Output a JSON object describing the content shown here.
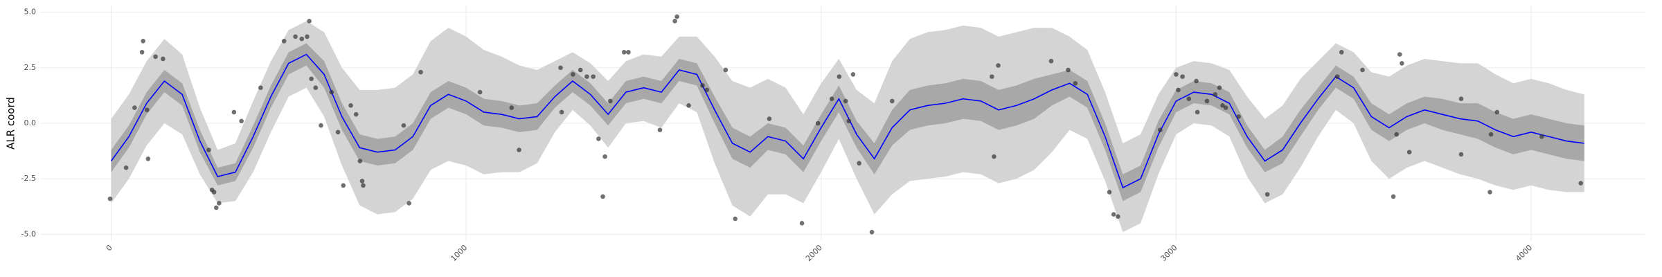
{
  "chart_data": {
    "type": "gp-line",
    "ylabel": "ALR coord",
    "xlim": [
      -200,
      4320
    ],
    "ylim": [
      -5.3,
      5.3
    ],
    "xticks": [
      0,
      1000,
      2000,
      3000,
      4000
    ],
    "yticks": [
      {
        "value": -5,
        "label": "-5.0"
      },
      {
        "value": -2.5,
        "label": "-2.5"
      },
      {
        "value": 0,
        "label": "0.0"
      },
      {
        "value": 2.5,
        "label": "2.5"
      },
      {
        "value": 5,
        "label": "5.0"
      }
    ],
    "grid": true,
    "x": [
      0,
      50,
      100,
      150,
      200,
      250,
      300,
      350,
      400,
      450,
      500,
      550,
      600,
      650,
      700,
      750,
      800,
      850,
      900,
      950,
      1000,
      1050,
      1100,
      1150,
      1200,
      1250,
      1300,
      1350,
      1400,
      1450,
      1500,
      1550,
      1600,
      1650,
      1700,
      1750,
      1800,
      1850,
      1900,
      1950,
      2000,
      2050,
      2100,
      2150,
      2200,
      2250,
      2300,
      2350,
      2400,
      2450,
      2500,
      2550,
      2600,
      2650,
      2700,
      2750,
      2800,
      2850,
      2900,
      2950,
      3000,
      3050,
      3100,
      3150,
      3200,
      3250,
      3300,
      3350,
      3400,
      3450,
      3500,
      3550,
      3600,
      3650,
      3700,
      3750,
      3800,
      3850,
      3900,
      3950,
      4000,
      4050,
      4100,
      4150
    ],
    "bands": [
      {
        "color": "#d4d4d4",
        "lower": [
          -3.6,
          -2.5,
          -1.0,
          0.0,
          -0.5,
          -2.3,
          -3.6,
          -3.5,
          -2.2,
          -0.4,
          1.2,
          1.6,
          0.3,
          -1.9,
          -3.7,
          -4.1,
          -4.0,
          -3.4,
          -2.1,
          -1.7,
          -1.9,
          -2.3,
          -2.2,
          -2.2,
          -1.8,
          -0.4,
          0.6,
          -0.1,
          -1.1,
          0.0,
          0.1,
          -0.2,
          0.9,
          0.5,
          -1.8,
          -3.7,
          -4.2,
          -3.2,
          -3.2,
          -3.6,
          -2.2,
          -0.7,
          -2.5,
          -4.1,
          -3.2,
          -2.6,
          -2.5,
          -2.4,
          -2.2,
          -2.3,
          -2.7,
          -2.5,
          -2.1,
          -1.3,
          -0.3,
          -0.7,
          -2.6,
          -4.9,
          -4.5,
          -2.3,
          -0.5,
          0.0,
          -0.1,
          -0.6,
          -2.4,
          -3.6,
          -3.2,
          -2.0,
          -0.6,
          0.6,
          0.0,
          -1.7,
          -2.5,
          -2.0,
          -1.7,
          -2.0,
          -2.3,
          -2.5,
          -2.8,
          -3.0,
          -2.8,
          -3.0,
          -3.1,
          -3.1
        ],
        "upper": [
          0.2,
          1.3,
          2.8,
          3.8,
          3.1,
          0.7,
          -1.2,
          -0.9,
          1.0,
          2.8,
          4.2,
          4.6,
          4.1,
          2.5,
          1.5,
          1.5,
          1.6,
          2.2,
          3.7,
          4.3,
          3.9,
          3.3,
          3.0,
          2.6,
          2.4,
          2.8,
          3.2,
          2.7,
          1.9,
          2.8,
          3.1,
          3.0,
          3.9,
          3.9,
          3.0,
          1.9,
          1.6,
          2.0,
          1.6,
          0.4,
          1.8,
          2.9,
          1.5,
          0.9,
          2.8,
          3.8,
          4.1,
          4.2,
          4.4,
          4.3,
          3.9,
          4.1,
          4.3,
          4.3,
          3.9,
          3.3,
          1.4,
          -0.9,
          -0.5,
          1.3,
          2.5,
          2.8,
          2.7,
          2.4,
          1.2,
          0.2,
          0.8,
          2.0,
          2.8,
          3.6,
          3.2,
          2.3,
          2.1,
          2.6,
          2.9,
          2.8,
          2.7,
          2.7,
          2.2,
          1.8,
          2.0,
          1.8,
          1.5,
          1.3
        ]
      },
      {
        "color": "#a8a8a8",
        "lower": [
          -2.2,
          -1.1,
          0.4,
          1.4,
          0.8,
          -1.3,
          -2.8,
          -2.6,
          -1.1,
          0.7,
          2.2,
          2.6,
          1.6,
          -0.3,
          -1.7,
          -1.9,
          -1.8,
          -1.2,
          0.2,
          0.7,
          0.4,
          -0.1,
          -0.2,
          -0.4,
          -0.3,
          0.7,
          1.4,
          0.8,
          -0.1,
          0.9,
          1.1,
          0.9,
          1.9,
          1.7,
          0.0,
          -1.6,
          -2.0,
          -1.2,
          -1.4,
          -2.2,
          -0.8,
          0.5,
          -1.1,
          -2.3,
          -1.0,
          -0.3,
          -0.1,
          0.0,
          0.2,
          0.1,
          -0.3,
          -0.1,
          0.2,
          0.8,
          1.2,
          0.7,
          -1.2,
          -3.5,
          -3.1,
          -1.1,
          0.5,
          0.9,
          0.8,
          0.4,
          -1.1,
          -2.2,
          -1.8,
          -0.6,
          0.6,
          1.6,
          1.1,
          -0.3,
          -0.8,
          -0.3,
          0.0,
          -0.3,
          -0.5,
          -0.7,
          -1.1,
          -1.4,
          -1.2,
          -1.4,
          -1.6,
          -1.7
        ],
        "upper": [
          -1.2,
          -0.1,
          1.4,
          2.4,
          1.8,
          -0.3,
          -2.0,
          -1.8,
          -0.1,
          1.7,
          3.2,
          3.6,
          2.8,
          0.9,
          -0.5,
          -0.7,
          -0.6,
          0.0,
          1.4,
          1.9,
          1.6,
          1.1,
          1.0,
          0.8,
          0.9,
          1.7,
          2.4,
          1.8,
          0.9,
          1.9,
          2.1,
          1.9,
          2.9,
          2.7,
          1.2,
          -0.2,
          -0.6,
          0.0,
          -0.2,
          -1.0,
          0.4,
          1.7,
          0.1,
          -0.9,
          0.6,
          1.5,
          1.7,
          1.8,
          2.0,
          1.9,
          1.5,
          1.7,
          2.0,
          2.2,
          2.4,
          1.9,
          0.0,
          -2.3,
          -1.9,
          0.1,
          1.5,
          1.9,
          1.8,
          1.4,
          -0.1,
          -1.2,
          -0.6,
          0.6,
          1.6,
          2.6,
          2.1,
          0.9,
          0.4,
          0.9,
          1.2,
          1.1,
          0.9,
          0.9,
          0.5,
          0.2,
          0.4,
          0.2,
          0.0,
          -0.1
        ]
      }
    ],
    "series": [
      {
        "color": "#0000ff",
        "values": [
          -1.7,
          -0.6,
          0.9,
          1.9,
          1.3,
          -0.8,
          -2.4,
          -2.2,
          -0.6,
          1.2,
          2.7,
          3.1,
          2.2,
          0.3,
          -1.1,
          -1.3,
          -1.2,
          -0.6,
          0.8,
          1.3,
          1.0,
          0.5,
          0.4,
          0.2,
          0.3,
          1.2,
          1.9,
          1.3,
          0.4,
          1.4,
          1.6,
          1.4,
          2.4,
          2.2,
          0.6,
          -0.9,
          -1.3,
          -0.6,
          -0.8,
          -1.6,
          -0.2,
          1.1,
          -0.5,
          -1.6,
          -0.2,
          0.6,
          0.8,
          0.9,
          1.1,
          1.0,
          0.6,
          0.8,
          1.1,
          1.5,
          1.8,
          1.3,
          -0.6,
          -2.9,
          -2.5,
          -0.5,
          1.0,
          1.4,
          1.3,
          0.9,
          -0.6,
          -1.7,
          -1.2,
          0.0,
          1.1,
          2.1,
          1.6,
          0.3,
          -0.2,
          0.3,
          0.6,
          0.4,
          0.2,
          0.1,
          -0.3,
          -0.6,
          -0.4,
          -0.6,
          -0.8,
          -0.9
        ]
      }
    ],
    "points": {
      "color": "#333333",
      "x": [
        -3,
        42,
        66,
        87,
        90,
        101,
        104,
        125,
        146,
        275,
        284,
        290,
        296,
        304,
        346,
        367,
        421,
        487,
        519,
        537,
        552,
        558,
        564,
        576,
        591,
        621,
        639,
        654,
        675,
        690,
        701,
        707,
        710,
        824,
        839,
        872,
        1039,
        1128,
        1149,
        1266,
        1269,
        1301,
        1322,
        1340,
        1358,
        1373,
        1385,
        1391,
        1406,
        1445,
        1457,
        1546,
        1588,
        1594,
        1627,
        1666,
        1678,
        1731,
        1758,
        1854,
        1946,
        1991,
        2030,
        2051,
        2069,
        2078,
        2090,
        2107,
        2143,
        2200,
        2481,
        2487,
        2499,
        2648,
        2696,
        2716,
        2812,
        2824,
        2836,
        2955,
        3000,
        3006,
        3018,
        3036,
        3057,
        3060,
        3087,
        3110,
        3122,
        3131,
        3140,
        3176,
        3257,
        3454,
        3466,
        3525,
        3612,
        3621,
        3630,
        3636,
        3657,
        3803,
        3803,
        3887,
        3884,
        3904,
        4030,
        4140
      ],
      "y": [
        -3.4,
        -2.0,
        0.7,
        3.2,
        3.7,
        0.6,
        -1.6,
        3.0,
        2.9,
        -1.2,
        -3.0,
        -3.1,
        -3.8,
        -3.6,
        0.5,
        0.1,
        1.6,
        3.7,
        3.9,
        3.8,
        3.9,
        4.6,
        2.0,
        1.6,
        -0.1,
        1.4,
        -0.4,
        -2.8,
        0.8,
        0.4,
        -1.7,
        -2.6,
        -2.8,
        -0.1,
        -3.6,
        2.3,
        1.4,
        0.7,
        -1.2,
        2.5,
        0.5,
        2.2,
        2.4,
        2.1,
        2.1,
        -0.7,
        -3.3,
        -1.5,
        1.0,
        3.2,
        3.2,
        -0.3,
        4.6,
        4.8,
        0.8,
        1.7,
        1.5,
        2.4,
        -4.3,
        0.2,
        -4.5,
        0.0,
        1.1,
        2.1,
        1.0,
        0.1,
        2.2,
        -1.8,
        -4.9,
        1.0,
        2.1,
        -1.5,
        2.6,
        2.8,
        2.4,
        1.8,
        -3.1,
        -4.1,
        -4.2,
        -0.3,
        2.2,
        1.5,
        2.1,
        1.1,
        1.9,
        0.5,
        1.0,
        1.3,
        1.6,
        0.8,
        0.7,
        0.3,
        -3.2,
        2.1,
        3.2,
        2.4,
        -3.3,
        -0.5,
        3.1,
        2.7,
        -1.3,
        1.1,
        -1.4,
        -0.5,
        -3.1,
        0.5,
        -0.6,
        -2.7
      ]
    }
  }
}
